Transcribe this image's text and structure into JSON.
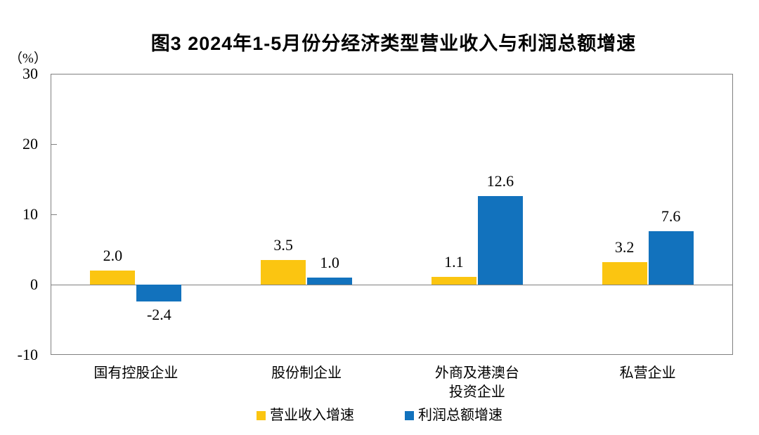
{
  "chart_data": {
    "type": "bar",
    "title": "图3  2024年1-5月份分经济类型营业收入与利润总额增速",
    "unit_label": "（%）",
    "categories": [
      "国有控股企业",
      "股份制企业",
      "外商及港澳台\n投资企业",
      "私营企业"
    ],
    "series": [
      {
        "name": "营业收入增速",
        "color": "#FBC511",
        "values": [
          2.0,
          3.5,
          1.1,
          3.2
        ]
      },
      {
        "name": "利润总额增速",
        "color": "#1272BD",
        "values": [
          -2.4,
          1.0,
          12.6,
          7.6
        ]
      }
    ],
    "data_labels": [
      [
        "2.0",
        "3.5",
        "1.1",
        "3.2"
      ],
      [
        "-2.4",
        "1.0",
        "12.6",
        "7.6"
      ]
    ],
    "ylim": [
      -10,
      30
    ],
    "yticks": [
      30,
      20,
      10,
      0,
      -10
    ],
    "grid": false,
    "legend_position": "bottom",
    "colors": {
      "axis": "#808080",
      "text": "#000000",
      "background": "#FFFFFF"
    }
  }
}
